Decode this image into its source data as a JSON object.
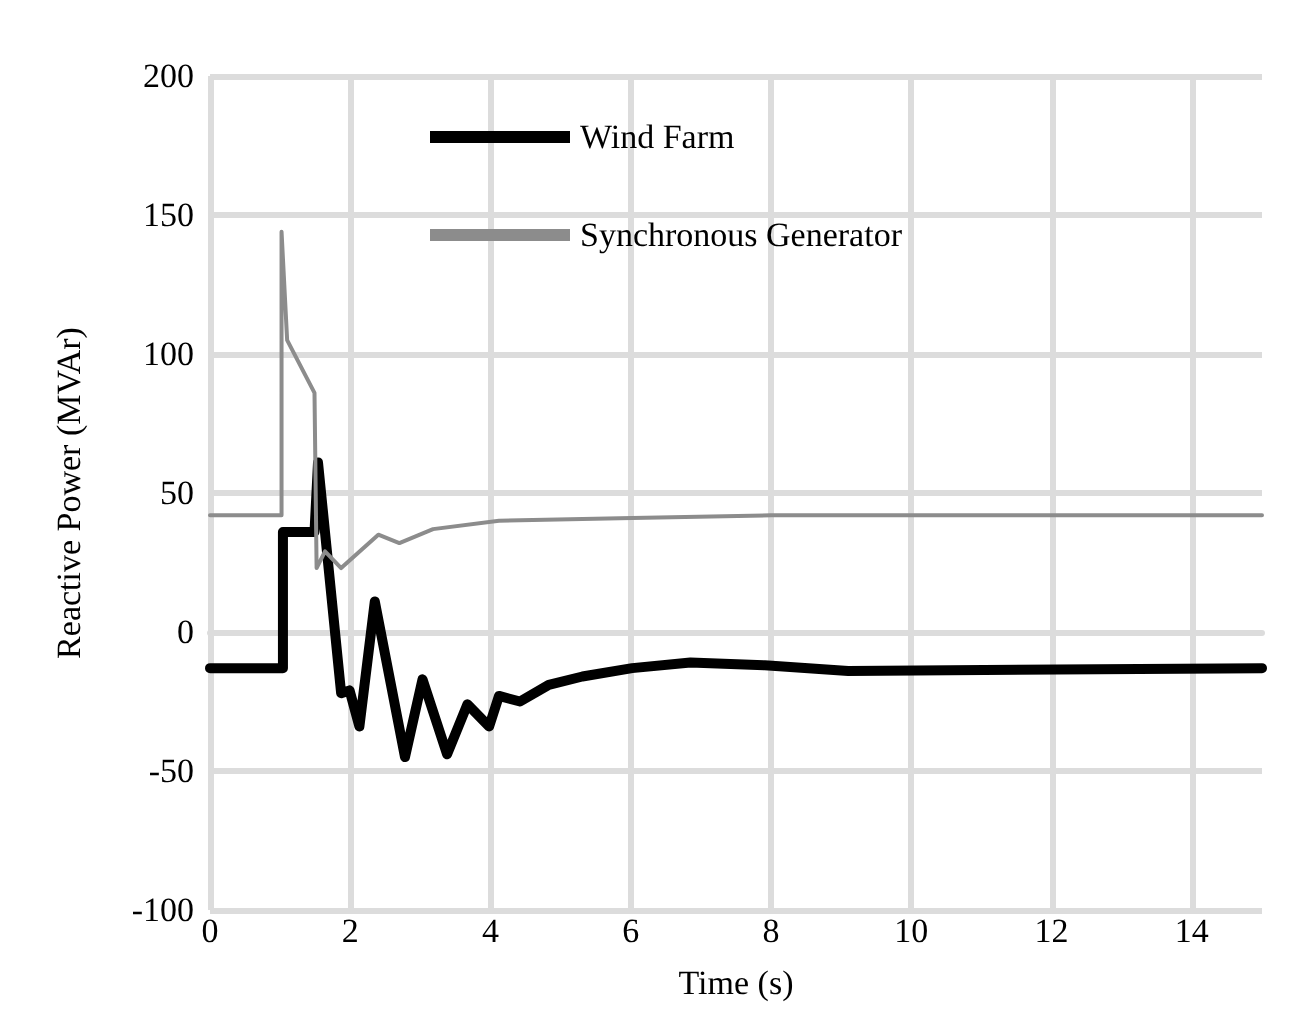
{
  "chart_data": {
    "type": "line",
    "xlabel": "Time (s)",
    "ylabel": "Reactive Power (MVAr)",
    "xlim": [
      0,
      15
    ],
    "xticks": [
      0,
      2,
      4,
      6,
      8,
      10,
      12,
      14
    ],
    "ylim": [
      -100,
      200
    ],
    "yticks": [
      -100,
      -50,
      0,
      50,
      100,
      150,
      200
    ],
    "grid": true,
    "legend": "top",
    "marker": "none",
    "line_style": "solid",
    "series": [
      {
        "name": "Wind Farm",
        "color": "#000000",
        "x": [
          0,
          1.04,
          1.04,
          1.49,
          1.54,
          1.87,
          1.99,
          2.13,
          2.35,
          2.78,
          3.03,
          3.38,
          3.67,
          3.98,
          4.12,
          4.42,
          4.83,
          5.31,
          6.02,
          6.85,
          7.91,
          9.1,
          15
        ],
        "values": [
          -13,
          -13,
          36,
          36,
          61,
          -22,
          -21,
          -34,
          11,
          -45,
          -17,
          -44,
          -26,
          -34,
          -23,
          -25,
          -19,
          -16,
          -13,
          -11,
          -12,
          -14,
          -13
        ]
      },
      {
        "name": "Synchronous Generator",
        "color": "#8c8c8c",
        "x": [
          0,
          1.02,
          1.02,
          1.1,
          1.49,
          1.52,
          1.64,
          1.87,
          2.4,
          2.7,
          3.18,
          4.12,
          6.02,
          8,
          15
        ],
        "values": [
          42,
          42,
          144,
          105,
          86,
          23,
          29,
          23,
          35,
          32,
          37,
          40,
          41,
          42,
          42
        ]
      }
    ]
  }
}
